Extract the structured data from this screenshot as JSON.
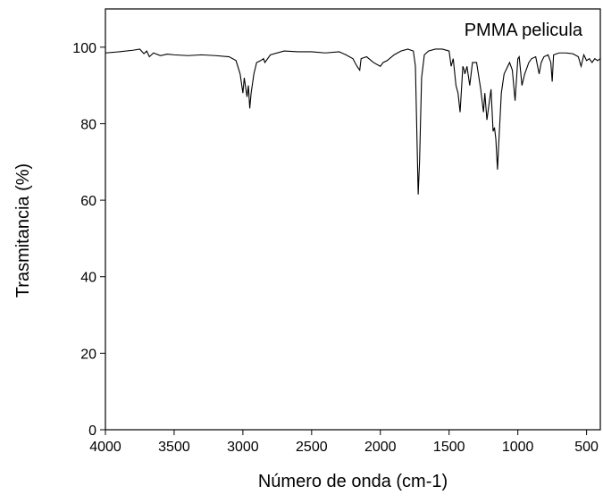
{
  "chart_data": {
    "type": "line",
    "title": "PMMA pelicula",
    "x_label": "Número de onda (cm-1)",
    "y_label": "Trasmitancia (%)",
    "xlim": [
      4000,
      400
    ],
    "ylim": [
      0,
      110
    ],
    "xticks": [
      4000,
      3500,
      3000,
      2500,
      2000,
      1500,
      1000,
      500
    ],
    "yticks": [
      0,
      20,
      40,
      60,
      80,
      100
    ],
    "series": [
      {
        "name": "PMMA pelicula",
        "color": "#000000",
        "x": [
          4000,
          3900,
          3800,
          3750,
          3720,
          3700,
          3680,
          3650,
          3600,
          3550,
          3500,
          3400,
          3300,
          3200,
          3100,
          3050,
          3020,
          3000,
          2990,
          2970,
          2960,
          2950,
          2940,
          2920,
          2900,
          2870,
          2850,
          2840,
          2800,
          2700,
          2600,
          2500,
          2400,
          2300,
          2250,
          2200,
          2170,
          2150,
          2140,
          2100,
          2050,
          2000,
          1980,
          1950,
          1900,
          1850,
          1800,
          1760,
          1745,
          1730,
          1725,
          1715,
          1700,
          1680,
          1650,
          1600,
          1550,
          1500,
          1485,
          1470,
          1450,
          1435,
          1420,
          1400,
          1390,
          1385,
          1370,
          1350,
          1330,
          1300,
          1270,
          1250,
          1240,
          1225,
          1210,
          1195,
          1180,
          1170,
          1160,
          1148,
          1140,
          1120,
          1100,
          1060,
          1040,
          1020,
          1000,
          990,
          970,
          950,
          920,
          900,
          870,
          845,
          830,
          810,
          780,
          760,
          750,
          740,
          700,
          650,
          600,
          560,
          540,
          520,
          500,
          480,
          460,
          440,
          420,
          400
        ],
        "values": [
          98.5,
          98.8,
          99.2,
          99.5,
          98.3,
          99,
          97.5,
          98.5,
          97.8,
          98.2,
          98,
          97.8,
          98,
          97.8,
          97.5,
          96.5,
          93,
          88,
          92,
          87,
          90,
          84,
          88,
          93,
          96,
          96.5,
          97,
          96,
          98,
          99,
          98.8,
          98.8,
          98.5,
          98.8,
          98,
          97,
          95,
          94,
          97,
          97.5,
          96,
          95,
          96,
          96.5,
          98,
          99,
          99.5,
          99,
          95,
          70,
          61.5,
          70,
          92,
          98,
          99,
          99.5,
          99.5,
          99,
          95,
          97,
          90,
          88,
          83,
          95,
          94,
          93,
          95,
          90,
          96,
          96,
          89,
          83,
          88,
          81,
          85,
          89,
          78,
          79,
          76,
          68,
          74,
          88,
          93,
          96,
          94,
          86,
          97,
          97.5,
          90,
          93,
          96,
          97,
          97.5,
          93,
          96,
          97.5,
          98,
          96,
          91,
          98,
          98.5,
          98.5,
          98.3,
          97.5,
          95,
          98,
          96.5,
          97,
          96,
          97,
          96.5,
          97
        ]
      }
    ]
  }
}
